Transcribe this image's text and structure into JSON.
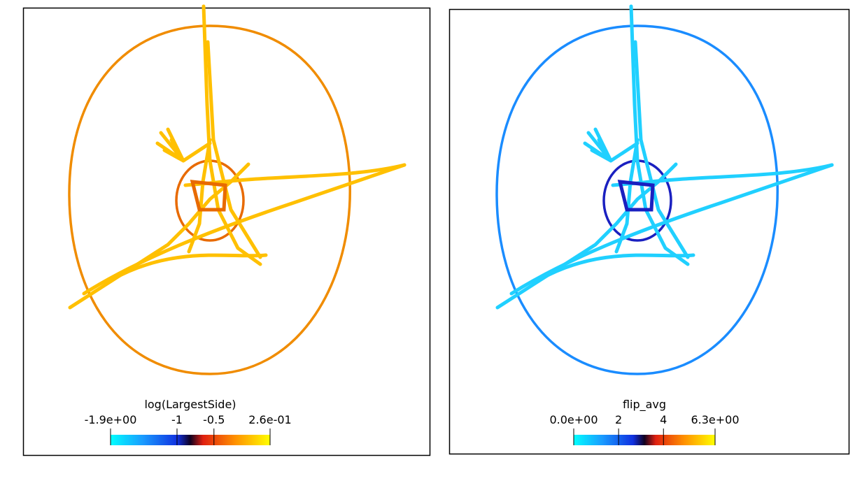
{
  "panels": [
    {
      "colorbar": {
        "title": "log(LargestSide)",
        "ticks": [
          {
            "value": -1.9,
            "label": "-1.9e+00"
          },
          -1,
          -0.5,
          {
            "value": 0.26,
            "label": "2.6e-01"
          }
        ]
      }
    },
    {
      "colorbar": {
        "title": "flip_avg",
        "ticks": [
          {
            "value": 0,
            "label": "0.0e+00"
          },
          2,
          4,
          {
            "value": 6.3,
            "label": "6.3e+00"
          }
        ]
      }
    }
  ]
}
